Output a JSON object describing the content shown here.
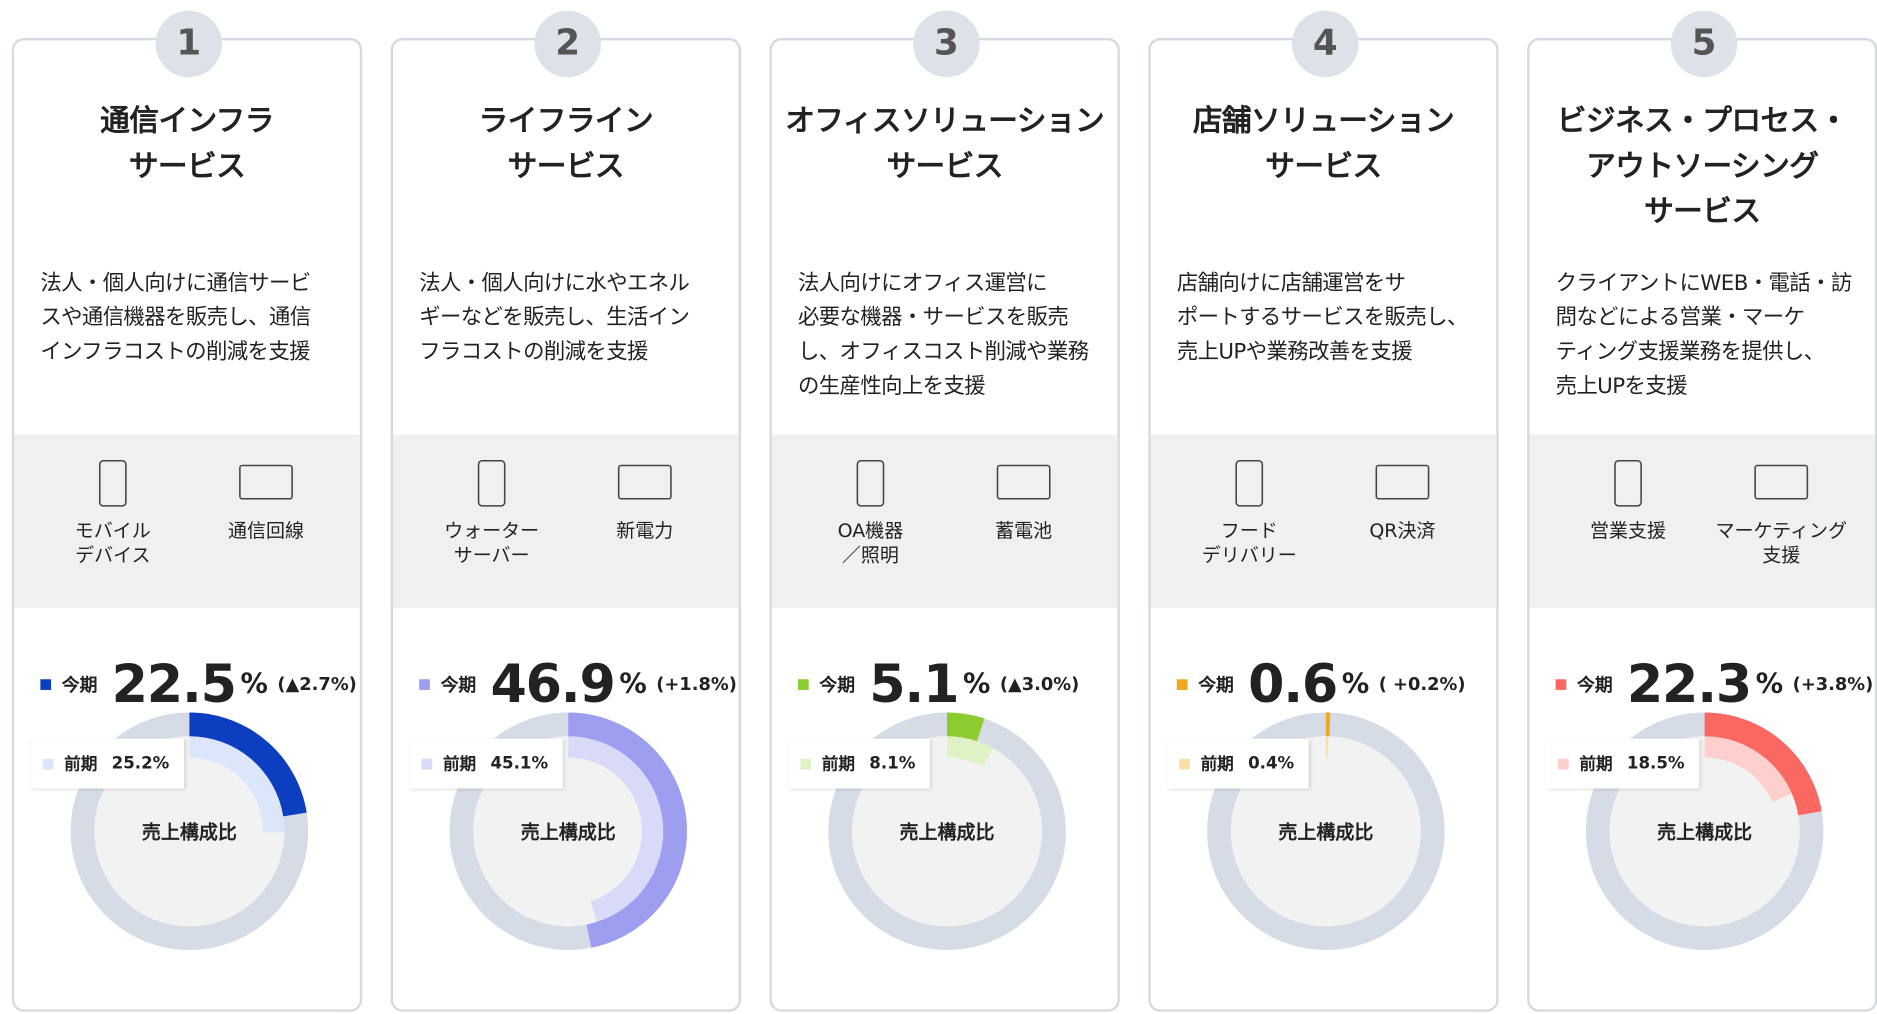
{
  "cards": [
    {
      "number": 1,
      "title": [
        "通信インフラ",
        "サービス"
      ],
      "description": [
        "法人・個人向けに通信サービ",
        "スや通信機器を販売し、通信",
        "インフラコストの削減を支援"
      ],
      "services": [
        {
          "label": [
            "モバイル",
            "デバイス"
          ]
        },
        {
          "label": [
            "通信回線"
          ]
        }
      ],
      "current": {
        "label": "今期",
        "value": 22.5,
        "unit": "%",
        "change": "(▲2.7%)"
      },
      "previous": {
        "label": "前期",
        "value": 25.2,
        "value_label": "25.2%"
      },
      "center_label": "売上構成比",
      "color": "#0b3fbf",
      "previous_color": "#dbe6fb"
    },
    {
      "number": 2,
      "title": [
        "ライフライン",
        "サービス"
      ],
      "description": [
        "法人・個人向けに水やエネル",
        "ギーなどを販売し、生活イン",
        "フラコストの削減を支援"
      ],
      "services": [
        {
          "label": [
            "ウォーター",
            "サーバー"
          ]
        },
        {
          "label": [
            "新電力"
          ]
        }
      ],
      "current": {
        "label": "今期",
        "value": 46.9,
        "unit": "%",
        "change": "(+1.8%)"
      },
      "previous": {
        "label": "前期",
        "value": 45.1,
        "value_label": "45.1%"
      },
      "center_label": "売上構成比",
      "color": "#9d9ef0",
      "previous_color": "#d9d9f8"
    },
    {
      "number": 3,
      "title": [
        "オフィスソリューション",
        "サービス"
      ],
      "description": [
        "法人向けにオフィス運営に",
        "必要な機器・サービスを販売",
        "し、オフィスコスト削減や業務",
        "の生産性向上を支援"
      ],
      "services": [
        {
          "label": [
            "OA機器",
            "／照明"
          ]
        },
        {
          "label": [
            "蓄電池"
          ]
        }
      ],
      "current": {
        "label": "今期",
        "value": 5.1,
        "unit": "%",
        "change": "(▲3.0%)"
      },
      "previous": {
        "label": "前期",
        "value": 8.1,
        "value_label": "8.1%"
      },
      "center_label": "売上構成比",
      "color": "#8ccc2e",
      "previous_color": "#dff2c6"
    },
    {
      "number": 4,
      "title": [
        "店舗ソリューション",
        "サービス"
      ],
      "description": [
        "店舗向けに店舗運営をサ",
        "ポートするサービスを販売し、",
        "売上UPや業務改善を支援"
      ],
      "services": [
        {
          "label": [
            "フード",
            "デリバリー"
          ]
        },
        {
          "label": [
            "QR決済"
          ]
        }
      ],
      "current": {
        "label": "今期",
        "value": 0.6,
        "unit": "%",
        "change": "( +0.2%)"
      },
      "previous": {
        "label": "前期",
        "value": 0.4,
        "value_label": "0.4%"
      },
      "center_label": "売上構成比",
      "color": "#f0a81c",
      "previous_color": "#fbe0a6"
    },
    {
      "number": 5,
      "title": [
        "ビジネス・プロセス・",
        "アウトソーシング",
        "サービス"
      ],
      "description": [
        "クライアントにWEB・電話・訪",
        "問などによる営業・マーケ",
        "ティング支援業務を提供し、",
        "売上UPを支援"
      ],
      "services": [
        {
          "label": [
            "営業支援"
          ]
        },
        {
          "label": [
            "マーケティング",
            "支援"
          ]
        }
      ],
      "current": {
        "label": "今期",
        "value": 22.3,
        "unit": "%",
        "change": "(+3.8%)"
      },
      "previous": {
        "label": "前期",
        "value": 18.5,
        "value_label": "18.5%"
      },
      "center_label": "売上構成比",
      "color": "#fb6861",
      "previous_color": "#fdcfcd"
    }
  ]
}
